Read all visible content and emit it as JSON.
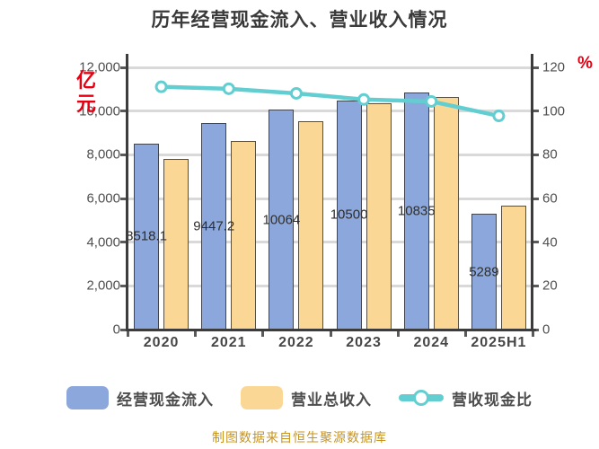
{
  "chart_data": {
    "type": "bar",
    "title": "历年经营现金流入、营业收入情况",
    "categories": [
      "2020",
      "2021",
      "2022",
      "2023",
      "2024",
      "2025H1"
    ],
    "series": [
      {
        "name": "经营现金流入",
        "type": "bar",
        "axis": "left",
        "color": "#8BA7DB",
        "values": [
          8518.1,
          9447.2,
          10064,
          10500,
          10835,
          5289
        ],
        "labels": [
          "8518.1",
          "9447.2",
          "10064",
          "10500",
          "10835",
          "5289"
        ]
      },
      {
        "name": "营业总收入",
        "type": "bar",
        "axis": "left",
        "color": "#FBD795",
        "values": [
          7790,
          8650,
          9550,
          10370,
          10660,
          5660
        ]
      },
      {
        "name": "营收现金比",
        "type": "line",
        "axis": "right",
        "color": "#63CED1",
        "values": [
          111.1,
          110.2,
          108.1,
          105.3,
          104.4,
          97.8
        ]
      }
    ],
    "left_axis": {
      "unit": "亿元",
      "unit_color": "#e60012",
      "min": 0,
      "max": 12000,
      "step": 2000,
      "tick_labels": [
        "0",
        "2,000",
        "4,000",
        "6,000",
        "8,000",
        "10,000",
        "12,000"
      ]
    },
    "right_axis": {
      "unit": "%",
      "unit_color": "#e60012",
      "min": 0,
      "max": 120,
      "step": 20,
      "tick_labels": [
        "0",
        "20",
        "40",
        "60",
        "80",
        "100",
        "120"
      ]
    },
    "grid": true,
    "legend_position": "bottom"
  },
  "watermark": "制图数据来自恒生聚源数据库"
}
